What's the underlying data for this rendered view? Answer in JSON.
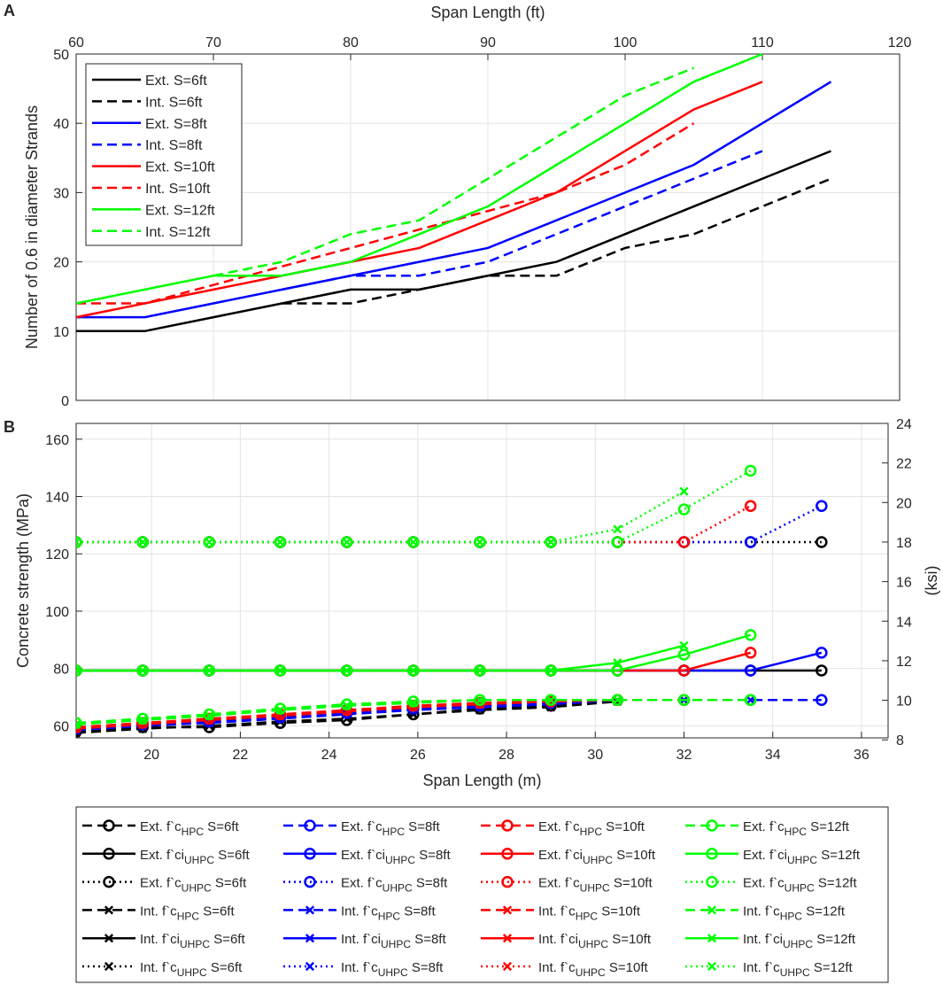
{
  "panel_labels": {
    "a": "A",
    "b": "B"
  },
  "colors": {
    "black": "#000000",
    "blue": "#0000ff",
    "red": "#ff0000",
    "green": "#00ff00"
  },
  "chart_data": [
    {
      "id": "A",
      "type": "line",
      "xlabel": "Span Length (ft)",
      "ylabel": "Number of 0.6 in diameter Strands",
      "xlim": [
        60,
        120
      ],
      "ylim": [
        0,
        50
      ],
      "xticks": [
        60,
        70,
        80,
        90,
        100,
        110,
        120
      ],
      "yticks": [
        0,
        10,
        20,
        30,
        40,
        50
      ],
      "grid": true,
      "legend_position": "top-left",
      "series": [
        {
          "name": "Ext. S=6ft",
          "color": "#000000",
          "dash": "solid",
          "x": [
            60,
            65,
            75,
            80,
            85,
            90,
            95,
            100,
            105,
            110,
            115
          ],
          "y": [
            10,
            10,
            14,
            16,
            16,
            18,
            20,
            24,
            28,
            32,
            36
          ]
        },
        {
          "name": "Int. S=6ft",
          "color": "#000000",
          "dash": "dashed",
          "x": [
            75,
            80,
            85,
            90,
            95,
            100,
            105,
            110,
            115
          ],
          "y": [
            14,
            14,
            16,
            18,
            18,
            22,
            24,
            28,
            32
          ]
        },
        {
          "name": "Ext. S=8ft",
          "color": "#0000ff",
          "dash": "solid",
          "x": [
            60,
            65,
            75,
            80,
            85,
            90,
            95,
            100,
            105,
            110,
            115
          ],
          "y": [
            12,
            12,
            16,
            18,
            20,
            22,
            26,
            30,
            34,
            40,
            46
          ]
        },
        {
          "name": "Int. S=8ft",
          "color": "#0000ff",
          "dash": "dashed",
          "x": [
            75,
            80,
            85,
            90,
            95,
            100,
            105,
            110
          ],
          "y": [
            16,
            18,
            18,
            20,
            24,
            28,
            32,
            36
          ]
        },
        {
          "name": "Ext. S=10ft",
          "color": "#ff0000",
          "dash": "solid",
          "x": [
            60,
            65,
            75,
            80,
            85,
            90,
            95,
            100,
            105,
            110
          ],
          "y": [
            12,
            14,
            18,
            20,
            22,
            26,
            30,
            36,
            42,
            46
          ]
        },
        {
          "name": "Int. S=10ft",
          "color": "#ff0000",
          "dash": "dashed",
          "x": [
            60,
            65,
            95,
            100,
            105
          ],
          "y": [
            14,
            14,
            30,
            34,
            40
          ]
        },
        {
          "name": "Ext. S=12ft",
          "color": "#00ff00",
          "dash": "solid",
          "x": [
            60,
            65,
            70,
            75,
            80,
            85,
            90,
            95,
            100,
            105,
            110
          ],
          "y": [
            14,
            16,
            18,
            18,
            20,
            24,
            28,
            34,
            40,
            46,
            50
          ]
        },
        {
          "name": "Int. S=12ft",
          "color": "#00ff00",
          "dash": "dashed",
          "x": [
            70,
            75,
            80,
            85,
            90,
            95,
            100,
            105
          ],
          "y": [
            18,
            20,
            24,
            26,
            32,
            38,
            44,
            48
          ]
        }
      ]
    },
    {
      "id": "B",
      "type": "line",
      "xlabel": "Span Length (m)",
      "ylabel": "Concrete strength (MPa)",
      "ylabel_right": "(ksi)",
      "xlim": [
        18.3,
        36.6
      ],
      "ylim": [
        55.8,
        165.5
      ],
      "ylim_right": [
        8.1,
        24
      ],
      "xticks": [
        20,
        22,
        24,
        26,
        28,
        30,
        32,
        34,
        36
      ],
      "yticks": [
        60,
        80,
        100,
        120,
        140,
        160
      ],
      "yticks_right": [
        8,
        10,
        12,
        14,
        16,
        18,
        20,
        22,
        24
      ],
      "grid": true,
      "legend_position": "bottom-outside",
      "x_points": [
        18.3,
        19.8,
        21.3,
        22.9,
        24.4,
        25.9,
        27.4,
        29.0,
        30.5,
        32.0,
        33.5,
        35.1
      ],
      "series": [
        {
          "name": "Ext. f'c HPC S=6ft",
          "label_pre": "Ext. f`c",
          "label_sub": "HPC",
          "label_post": " S=6ft",
          "color": "#000000",
          "dash": "dashed",
          "marker": "o",
          "y": [
            58,
            59.5,
            59.5,
            61,
            62,
            64,
            66,
            67,
            69
          ]
        },
        {
          "name": "Ext. f'ci UHPC S=6ft",
          "label_pre": "Ext. f`ci",
          "label_sub": "UHPC",
          "label_post": " S=6ft",
          "color": "#000000",
          "dash": "solid",
          "marker": "o",
          "y": [
            79.3,
            79.3,
            79.3,
            79.3,
            79.3,
            79.3,
            79.3,
            79.3,
            79.3,
            79.3,
            79.3,
            79.3
          ]
        },
        {
          "name": "Ext. f'c UHPC S=6ft",
          "label_pre": "Ext. f`c",
          "label_sub": "UHPC",
          "label_post": " S=6ft",
          "color": "#000000",
          "dash": "dotted",
          "marker": "o",
          "y": [
            124.1,
            124.1,
            124.1,
            124.1,
            124.1,
            124.1,
            124.1,
            124.1,
            124.1,
            124.1,
            124.1,
            124.1
          ]
        },
        {
          "name": "Int. f'c HPC S=6ft",
          "label_pre": "Int. f`c",
          "label_sub": "HPC",
          "label_post": " S=6ft",
          "color": "#000000",
          "dash": "dashed",
          "marker": "x",
          "y": [
            57.5,
            59,
            60,
            61.5,
            62.5,
            64,
            65.5,
            66.5,
            68.5
          ]
        },
        {
          "name": "Int. f'ci UHPC S=6ft",
          "label_pre": "Int. f`ci",
          "label_sub": "UHPC",
          "label_post": " S=6ft",
          "color": "#000000",
          "dash": "solid",
          "marker": "x",
          "y": []
        },
        {
          "name": "Int. f'c UHPC S=6ft",
          "label_pre": "Int. f`c",
          "label_sub": "UHPC",
          "label_post": " S=6ft",
          "color": "#000000",
          "dash": "dotted",
          "marker": "x",
          "y": []
        },
        {
          "name": "Ext. f'c HPC S=8ft",
          "label_pre": "Ext. f`c",
          "label_sub": "HPC",
          "label_post": " S=8ft",
          "color": "#0000ff",
          "dash": "dashed",
          "marker": "o",
          "y": [
            59,
            60.5,
            61.5,
            63,
            64.5,
            66,
            67,
            68,
            69,
            69,
            69,
            69
          ]
        },
        {
          "name": "Ext. f'ci UHPC S=8ft",
          "label_pre": "Ext. f`ci",
          "label_sub": "UHPC",
          "label_post": " S=8ft",
          "color": "#0000ff",
          "dash": "solid",
          "marker": "o",
          "y": [
            79.3,
            79.3,
            79.3,
            79.3,
            79.3,
            79.3,
            79.3,
            79.3,
            79.3,
            79.3,
            79.3,
            85.5
          ]
        },
        {
          "name": "Ext. f'c UHPC S=8ft",
          "label_pre": "Ext. f`c",
          "label_sub": "UHPC",
          "label_post": " S=8ft",
          "color": "#0000ff",
          "dash": "dotted",
          "marker": "o",
          "y": [
            124.1,
            124.1,
            124.1,
            124.1,
            124.1,
            124.1,
            124.1,
            124.1,
            124.1,
            124.1,
            124.1,
            136.7
          ]
        },
        {
          "name": "Int. f'c HPC S=8ft",
          "label_pre": "Int. f`c",
          "label_sub": "HPC",
          "label_post": " S=8ft",
          "color": "#0000ff",
          "dash": "dashed",
          "marker": "x",
          "y": [
            58.5,
            60,
            61,
            62.5,
            64,
            65.5,
            66.5,
            67.5,
            69,
            69,
            69
          ]
        },
        {
          "name": "Int. f'ci UHPC S=8ft",
          "label_pre": "Int. f`ci",
          "label_sub": "UHPC",
          "label_post": " S=8ft",
          "color": "#0000ff",
          "dash": "solid",
          "marker": "x",
          "y": []
        },
        {
          "name": "Int. f'c UHPC S=8ft",
          "label_pre": "Int. f`c",
          "label_sub": "UHPC",
          "label_post": " S=8ft",
          "color": "#0000ff",
          "dash": "dotted",
          "marker": "x",
          "y": []
        },
        {
          "name": "Ext. f'c HPC S=10ft",
          "label_pre": "Ext. f`c",
          "label_sub": "HPC",
          "label_post": " S=10ft",
          "color": "#ff0000",
          "dash": "dashed",
          "marker": "o",
          "y": [
            59.5,
            61,
            62.5,
            64,
            65.5,
            67,
            68,
            68.5,
            69,
            69
          ]
        },
        {
          "name": "Ext. f'ci UHPC S=10ft",
          "label_pre": "Ext. f`ci",
          "label_sub": "UHPC",
          "label_post": " S=10ft",
          "color": "#ff0000",
          "dash": "solid",
          "marker": "o",
          "y": [
            79.3,
            79.3,
            79.3,
            79.3,
            79.3,
            79.3,
            79.3,
            79.3,
            79.3,
            79.3,
            85.5
          ]
        },
        {
          "name": "Ext. f'c UHPC S=10ft",
          "label_pre": "Ext. f`c",
          "label_sub": "UHPC",
          "label_post": " S=10ft",
          "color": "#ff0000",
          "dash": "dotted",
          "marker": "o",
          "y": [
            124.1,
            124.1,
            124.1,
            124.1,
            124.1,
            124.1,
            124.1,
            124.1,
            124.1,
            124.1,
            136.7
          ]
        },
        {
          "name": "Int. f'c HPC S=10ft",
          "label_pre": "Int. f`c",
          "label_sub": "HPC",
          "label_post": " S=10ft",
          "color": "#ff0000",
          "dash": "dashed",
          "marker": "x",
          "y": [
            59,
            60.5,
            62,
            63.5,
            65,
            66.5,
            67.5,
            68.5,
            69
          ]
        },
        {
          "name": "Int. f'ci UHPC S=10ft",
          "label_pre": "Int. f`ci",
          "label_sub": "UHPC",
          "label_post": " S=10ft",
          "color": "#ff0000",
          "dash": "solid",
          "marker": "x",
          "y": []
        },
        {
          "name": "Int. f'c UHPC S=10ft",
          "label_pre": "Int. f`c",
          "label_sub": "UHPC",
          "label_post": " S=10ft",
          "color": "#ff0000",
          "dash": "dotted",
          "marker": "x",
          "y": []
        },
        {
          "name": "Ext. f'c HPC S=12ft",
          "label_pre": "Ext. f`c",
          "label_sub": "HPC",
          "label_post": " S=12ft",
          "color": "#00ff00",
          "dash": "dashed",
          "marker": "o",
          "y": [
            61,
            62.5,
            64,
            66,
            67.5,
            68.5,
            69,
            69,
            69,
            69,
            69
          ]
        },
        {
          "name": "Ext. f'ci UHPC S=12ft",
          "label_pre": "Ext. f`ci",
          "label_sub": "UHPC",
          "label_post": " S=12ft",
          "color": "#00ff00",
          "dash": "solid",
          "marker": "o",
          "y": [
            79.3,
            79.3,
            79.3,
            79.3,
            79.3,
            79.3,
            79.3,
            79.3,
            79.3,
            84.8,
            91.7
          ]
        },
        {
          "name": "Ext. f'c UHPC S=12ft",
          "label_pre": "Ext. f`c",
          "label_sub": "UHPC",
          "label_post": " S=12ft",
          "color": "#00ff00",
          "dash": "dotted",
          "marker": "o",
          "y": [
            124.1,
            124.1,
            124.1,
            124.1,
            124.1,
            124.1,
            124.1,
            124.1,
            124.1,
            135.5,
            149.0
          ]
        },
        {
          "name": "Int. f'c HPC S=12ft",
          "label_pre": "Int. f`c",
          "label_sub": "HPC",
          "label_post": " S=12ft",
          "color": "#00ff00",
          "dash": "dashed",
          "marker": "x",
          "y": [
            60.5,
            62,
            63.5,
            65.5,
            67,
            68,
            69,
            69,
            69
          ]
        },
        {
          "name": "Int. f'ci UHPC S=12ft",
          "label_pre": "Int. f`ci",
          "label_sub": "UHPC",
          "label_post": " S=12ft",
          "color": "#00ff00",
          "dash": "solid",
          "marker": "x",
          "y": [
            79.3,
            79.3,
            79.3,
            79.3,
            79.3,
            79.3,
            79.3,
            79.3,
            82,
            88
          ]
        },
        {
          "name": "Int. f'c UHPC S=12ft",
          "label_pre": "Int. f`c",
          "label_sub": "UHPC",
          "label_post": " S=12ft",
          "color": "#00ff00",
          "dash": "dotted",
          "marker": "x",
          "y": [
            124.1,
            124.1,
            124.1,
            124.1,
            124.1,
            124.1,
            124.1,
            124.1,
            128.6,
            141.8
          ]
        }
      ]
    }
  ]
}
